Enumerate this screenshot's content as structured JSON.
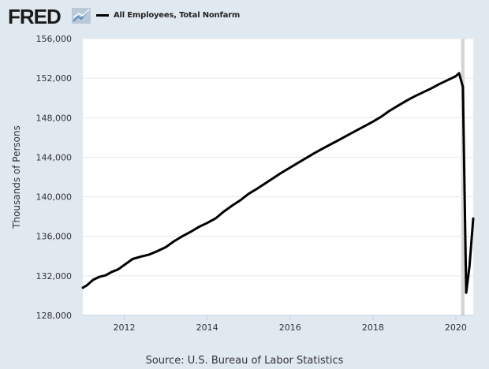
{
  "header": {
    "logo_text": "FRED",
    "logo_icon": "line-chart-icon"
  },
  "chart_data": {
    "type": "line",
    "title": "",
    "xlabel": "",
    "ylabel": "Thousands of Persons",
    "xlim": [
      2011.0,
      2020.42
    ],
    "ylim": [
      128000,
      156000
    ],
    "x_ticks": [
      "2012",
      "2014",
      "2016",
      "2018",
      "2020"
    ],
    "y_ticks": [
      "156,000",
      "152,000",
      "148,000",
      "144,000",
      "140,000",
      "136,000",
      "132,000",
      "128,000"
    ],
    "grid": true,
    "legend_position": "top-left",
    "recession_band": [
      2020.13,
      2020.21
    ],
    "series": [
      {
        "name": "All Employees, Total Nonfarm",
        "color": "#000000",
        "points": [
          [
            2011.0,
            130800
          ],
          [
            2011.1,
            131050
          ],
          [
            2011.25,
            131600
          ],
          [
            2011.4,
            131900
          ],
          [
            2011.55,
            132050
          ],
          [
            2011.7,
            132400
          ],
          [
            2011.85,
            132650
          ],
          [
            2012.0,
            133100
          ],
          [
            2012.2,
            133700
          ],
          [
            2012.4,
            133950
          ],
          [
            2012.6,
            134150
          ],
          [
            2012.8,
            134500
          ],
          [
            2013.0,
            134900
          ],
          [
            2013.2,
            135500
          ],
          [
            2013.4,
            136000
          ],
          [
            2013.6,
            136450
          ],
          [
            2013.8,
            136950
          ],
          [
            2014.0,
            137350
          ],
          [
            2014.2,
            137800
          ],
          [
            2014.4,
            138500
          ],
          [
            2014.6,
            139100
          ],
          [
            2014.8,
            139650
          ],
          [
            2015.0,
            140300
          ],
          [
            2015.2,
            140800
          ],
          [
            2015.4,
            141350
          ],
          [
            2015.6,
            141900
          ],
          [
            2015.8,
            142450
          ],
          [
            2016.0,
            142950
          ],
          [
            2016.2,
            143450
          ],
          [
            2016.4,
            143950
          ],
          [
            2016.6,
            144450
          ],
          [
            2016.8,
            144900
          ],
          [
            2017.0,
            145350
          ],
          [
            2017.2,
            145800
          ],
          [
            2017.4,
            146250
          ],
          [
            2017.6,
            146700
          ],
          [
            2017.8,
            147150
          ],
          [
            2018.0,
            147600
          ],
          [
            2018.2,
            148100
          ],
          [
            2018.4,
            148700
          ],
          [
            2018.6,
            149200
          ],
          [
            2018.8,
            149700
          ],
          [
            2019.0,
            150150
          ],
          [
            2019.2,
            150550
          ],
          [
            2019.4,
            150950
          ],
          [
            2019.6,
            151400
          ],
          [
            2019.8,
            151800
          ],
          [
            2020.0,
            152200
          ],
          [
            2020.08,
            152500
          ],
          [
            2020.17,
            151100
          ],
          [
            2020.25,
            130300
          ],
          [
            2020.33,
            133000
          ],
          [
            2020.42,
            137800
          ]
        ]
      }
    ]
  },
  "source_text": "Source: U.S. Bureau of Labor Statistics"
}
